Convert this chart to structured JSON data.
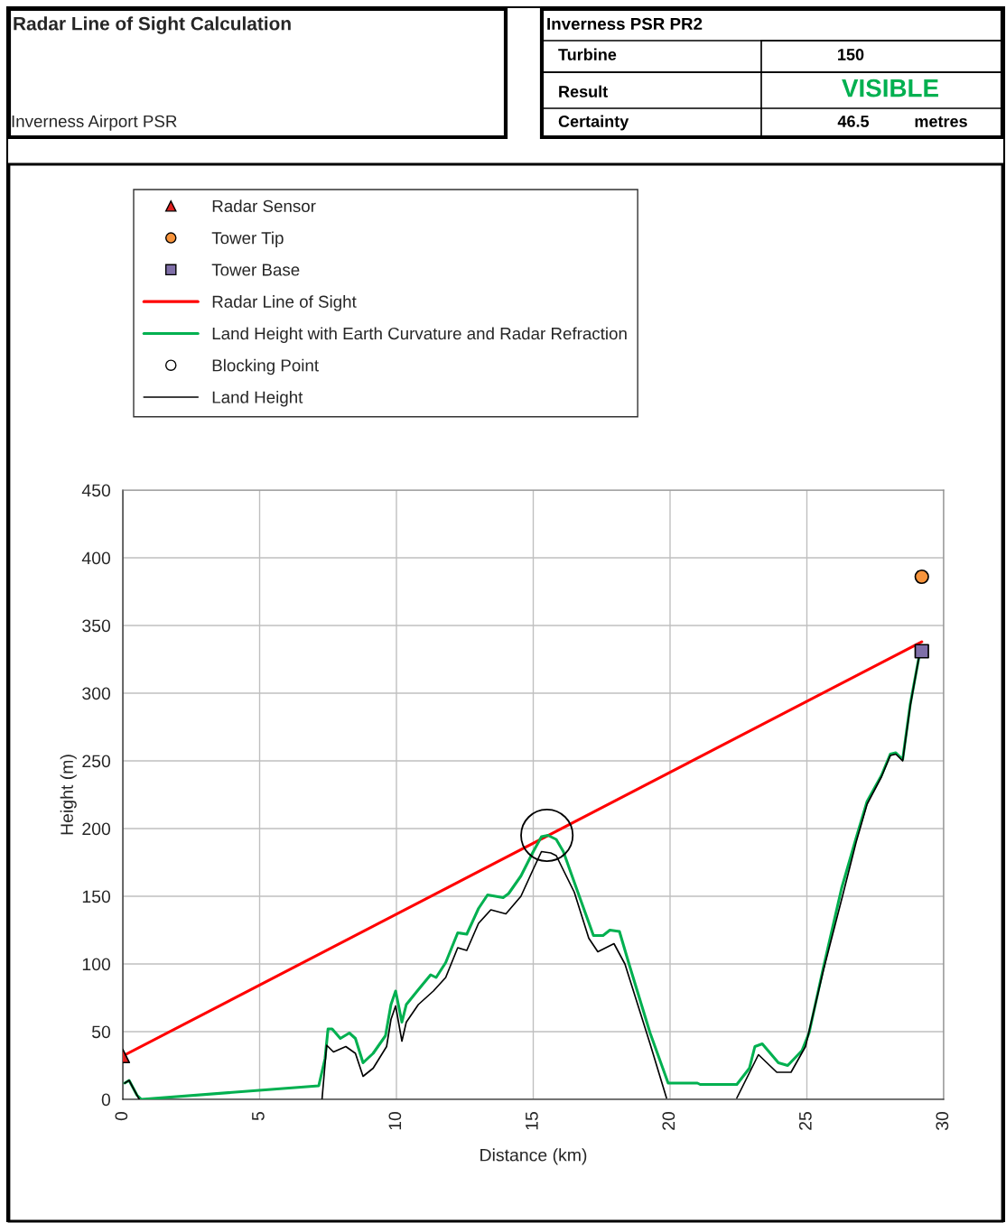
{
  "chart_data": {
    "type": "line",
    "title": "Radar Line of Sight Calculation",
    "subtitle": "Inverness Airport PSR",
    "xlabel": "Distance (km)",
    "ylabel": "Height (m)",
    "xlim": [
      0,
      30
    ],
    "xticks": [
      0,
      5,
      10,
      15,
      20,
      25,
      30
    ],
    "ylim": [
      0,
      450
    ],
    "yticks": [
      0,
      50,
      100,
      150,
      200,
      250,
      300,
      350,
      400,
      450
    ],
    "grid": true,
    "legend": "top",
    "annotations": [
      "Inverness PSR PR2",
      "Turbine",
      "150",
      "Result",
      "VISIBLE",
      "Certainty",
      "46.5",
      "metres"
    ],
    "series": [
      {
        "name": "Radar Sensor",
        "type": "scatter",
        "marker": "triangle",
        "color": "#e02020",
        "x": [
          0
        ],
        "values": [
          32
        ]
      },
      {
        "name": "Tower Tip",
        "type": "scatter",
        "marker": "circle",
        "color": "#f7943c",
        "x": [
          29.2
        ],
        "values": [
          386
        ]
      },
      {
        "name": "Tower Base",
        "type": "scatter",
        "marker": "square",
        "color": "#7f6fa8",
        "x": [
          29.2
        ],
        "values": [
          331
        ]
      },
      {
        "name": "Radar Line of Sight",
        "marker": "none",
        "color": "#ff0000",
        "x": [
          0,
          29.2
        ],
        "values": [
          32,
          338
        ]
      },
      {
        "name": "Land Height with Earth Curvature and Radar Refraction",
        "marker": "none",
        "color": "#00b050",
        "x": [
          0.07,
          0.23,
          0.52,
          0.68,
          7.16,
          7.39,
          7.5,
          7.65,
          7.95,
          8.28,
          8.5,
          8.78,
          9.15,
          9.6,
          9.8,
          9.97,
          10.2,
          10.36,
          10.8,
          11.25,
          11.45,
          11.8,
          12.24,
          12.57,
          13.0,
          13.33,
          13.9,
          14.1,
          14.55,
          15.0,
          15.3,
          15.54,
          15.84,
          16.1,
          16.63,
          17.2,
          17.55,
          17.8,
          18.15,
          18.5,
          19.27,
          19.93,
          21.0,
          21.1,
          22.44,
          22.9,
          23.1,
          23.37,
          23.96,
          24.3,
          24.82,
          25.08,
          25.6,
          26.27,
          26.8,
          27.2,
          27.72,
          28.05,
          28.25,
          28.5,
          28.78,
          29.1
        ],
        "values": [
          12,
          14,
          3,
          0,
          10,
          30,
          52,
          52,
          45,
          49,
          45,
          27,
          34,
          47,
          70,
          80,
          57,
          70,
          81,
          92,
          90,
          101,
          123,
          122,
          141,
          151,
          149,
          152,
          165,
          183,
          194,
          195,
          192,
          183,
          153,
          121,
          121,
          125,
          124,
          100,
          49,
          12,
          12,
          11,
          11,
          23,
          39,
          41,
          27,
          25,
          36,
          49,
          97,
          156,
          193,
          220,
          239,
          255,
          256,
          251,
          292,
          327
        ]
      },
      {
        "name": "Blocking Point",
        "type": "bubble",
        "marker": "circle",
        "color": "#000000",
        "x": [
          15.5
        ],
        "values": [
          195
        ],
        "sizes": [
          1
        ]
      },
      {
        "name": "Land Height",
        "marker": "none",
        "color": "#000000",
        "x": [
          0.07,
          0.23,
          0.52,
          0.6,
          7.0,
          7.28,
          7.45,
          7.7,
          8.15,
          8.5,
          8.78,
          9.15,
          9.64,
          9.8,
          9.97,
          10.2,
          10.36,
          10.8,
          11.35,
          11.8,
          12.24,
          12.57,
          13.0,
          13.45,
          14.0,
          14.55,
          15.0,
          15.3,
          15.64,
          15.84,
          16.5,
          17.03,
          17.36,
          17.95,
          18.35,
          19.27,
          19.87,
          21.0,
          22.44,
          23.23,
          23.9,
          24.42,
          24.95,
          25.6,
          26.3,
          26.8,
          27.2,
          27.72,
          28.05,
          28.25,
          28.5,
          28.78,
          29.1
        ],
        "values": [
          12,
          14,
          3,
          0,
          null,
          0,
          40,
          35,
          39,
          34,
          17,
          23,
          39,
          59,
          69,
          43,
          57,
          70,
          80,
          90,
          112,
          110,
          130,
          140,
          137,
          150,
          170,
          183,
          182,
          180,
          153,
          119,
          109,
          115,
          100,
          41,
          1,
          null,
          1,
          33,
          20,
          20,
          39,
          95,
          150,
          190,
          218,
          238,
          254,
          255,
          250,
          291,
          327
        ]
      }
    ]
  }
}
